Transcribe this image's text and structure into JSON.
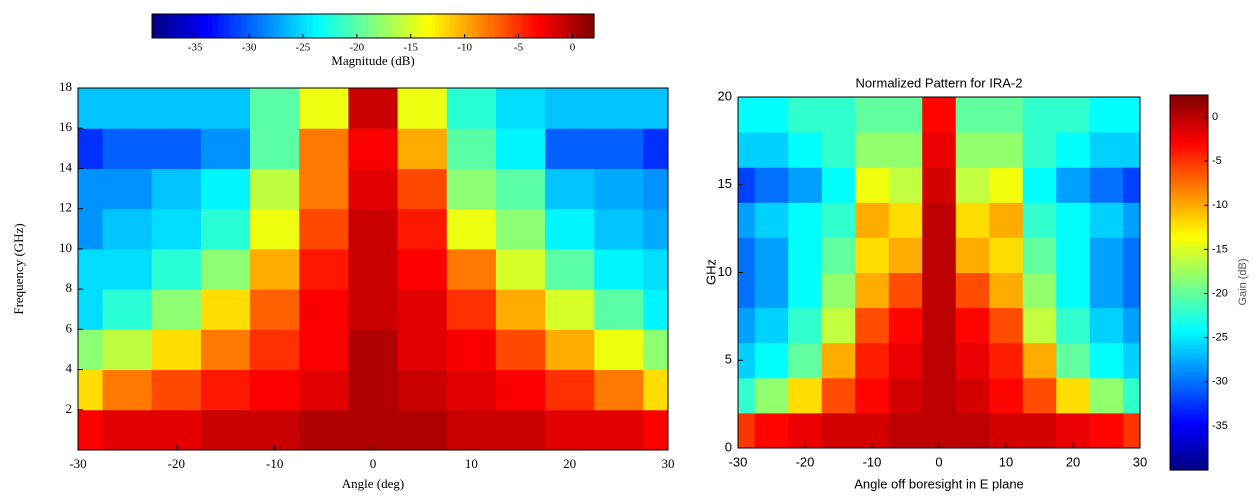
{
  "chart_data": [
    {
      "type": "heatmap",
      "colormap": "jet",
      "colorbar": "top",
      "xlabel": "Angle (deg)",
      "ylabel": "Frequency (GHz)",
      "colorbar_label": "Magnitude (dB)",
      "x": [
        -30,
        -25,
        -20,
        -15,
        -10,
        -5,
        0,
        5,
        10,
        15,
        20,
        25,
        30
      ],
      "y": [
        1,
        3,
        5,
        7,
        9,
        11,
        13,
        15,
        17
      ],
      "z": [
        [
          -3,
          -2,
          -2,
          -1,
          -1,
          0,
          0,
          0,
          -1,
          -1,
          -2,
          -2,
          -3
        ],
        [
          -12,
          -8,
          -6,
          -4,
          -3,
          -2,
          0,
          -1,
          -2,
          -3,
          -5,
          -8,
          -12
        ],
        [
          -18,
          -16,
          -12,
          -8,
          -5,
          -3,
          0,
          -2,
          -3,
          -6,
          -10,
          -14,
          -18
        ],
        [
          -25,
          -22,
          -18,
          -12,
          -7,
          -3,
          -1,
          -2,
          -5,
          -10,
          -15,
          -20,
          -24
        ],
        [
          -25,
          -25,
          -22,
          -18,
          -10,
          -4,
          -1,
          -3,
          -8,
          -15,
          -20,
          -24,
          -25
        ],
        [
          -28,
          -26,
          -25,
          -22,
          -14,
          -6,
          -1,
          -4,
          -14,
          -18,
          -24,
          -26,
          -27
        ],
        [
          -28,
          -28,
          -26,
          -24,
          -16,
          -8,
          -2,
          -6,
          -18,
          -20,
          -26,
          -27,
          -28
        ],
        [
          -32,
          -30,
          -30,
          -28,
          -20,
          -8,
          -3,
          -10,
          -20,
          -24,
          -30,
          -30,
          -32
        ],
        [
          -26,
          -26,
          -26,
          -26,
          -20,
          -14,
          -1,
          -14,
          -22,
          -25,
          -26,
          -26,
          -26
        ]
      ],
      "xlim": [
        -30,
        30
      ],
      "ylim": [
        0,
        18
      ],
      "clim": [
        -39,
        2
      ],
      "xticks": [
        -30,
        -20,
        -10,
        0,
        10,
        20,
        30
      ],
      "yticks": [
        2,
        4,
        6,
        8,
        10,
        12,
        14,
        16,
        18
      ],
      "cticks": [
        -35,
        -30,
        -25,
        -20,
        -15,
        -10,
        -5,
        0
      ]
    },
    {
      "type": "heatmap",
      "colormap": "jet",
      "colorbar": "right",
      "title": "Normalized Pattern for IRA-2",
      "xlabel": "Angle off boresight in E plane",
      "ylabel": "GHz",
      "colorbar_label": "Gain (dB)",
      "x": [
        -30,
        -25,
        -20,
        -15,
        -10,
        -5,
        0,
        5,
        10,
        15,
        20,
        25,
        30
      ],
      "y": [
        1,
        3,
        5,
        7,
        9,
        11,
        13,
        15,
        17,
        19
      ],
      "z": [
        [
          -5,
          -3,
          -2,
          -1,
          -1,
          0,
          0,
          0,
          -1,
          -1,
          -2,
          -3,
          -5
        ],
        [
          -22,
          -18,
          -12,
          -6,
          -3,
          -1,
          0,
          -1,
          -3,
          -6,
          -12,
          -18,
          -22
        ],
        [
          -26,
          -24,
          -20,
          -10,
          -4,
          -2,
          0,
          -2,
          -4,
          -10,
          -20,
          -24,
          -26
        ],
        [
          -28,
          -26,
          -22,
          -16,
          -6,
          -3,
          0,
          -3,
          -6,
          -16,
          -22,
          -26,
          -28
        ],
        [
          -30,
          -28,
          -24,
          -18,
          -10,
          -6,
          0,
          -6,
          -10,
          -18,
          -24,
          -28,
          -30
        ],
        [
          -30,
          -28,
          -24,
          -20,
          -12,
          -10,
          0,
          -10,
          -12,
          -20,
          -24,
          -28,
          -30
        ],
        [
          -28,
          -26,
          -24,
          -22,
          -10,
          -12,
          0,
          -12,
          -10,
          -22,
          -24,
          -26,
          -28
        ],
        [
          -32,
          -30,
          -28,
          -24,
          -14,
          -16,
          -1,
          -16,
          -14,
          -24,
          -28,
          -30,
          -32
        ],
        [
          -26,
          -26,
          -24,
          -22,
          -18,
          -18,
          -2,
          -18,
          -18,
          -22,
          -24,
          -26,
          -26
        ],
        [
          -24,
          -24,
          -22,
          -22,
          -20,
          -20,
          -3,
          -20,
          -20,
          -22,
          -22,
          -24,
          -24
        ]
      ],
      "xlim": [
        -30,
        30
      ],
      "ylim": [
        0,
        20
      ],
      "clim": [
        -40,
        2.5
      ],
      "xticks": [
        -30,
        -20,
        -10,
        0,
        10,
        20,
        30
      ],
      "yticks": [
        0,
        5,
        10,
        15,
        20
      ],
      "cticks": [
        -35,
        -30,
        -25,
        -20,
        -15,
        -10,
        -5,
        0
      ]
    }
  ]
}
